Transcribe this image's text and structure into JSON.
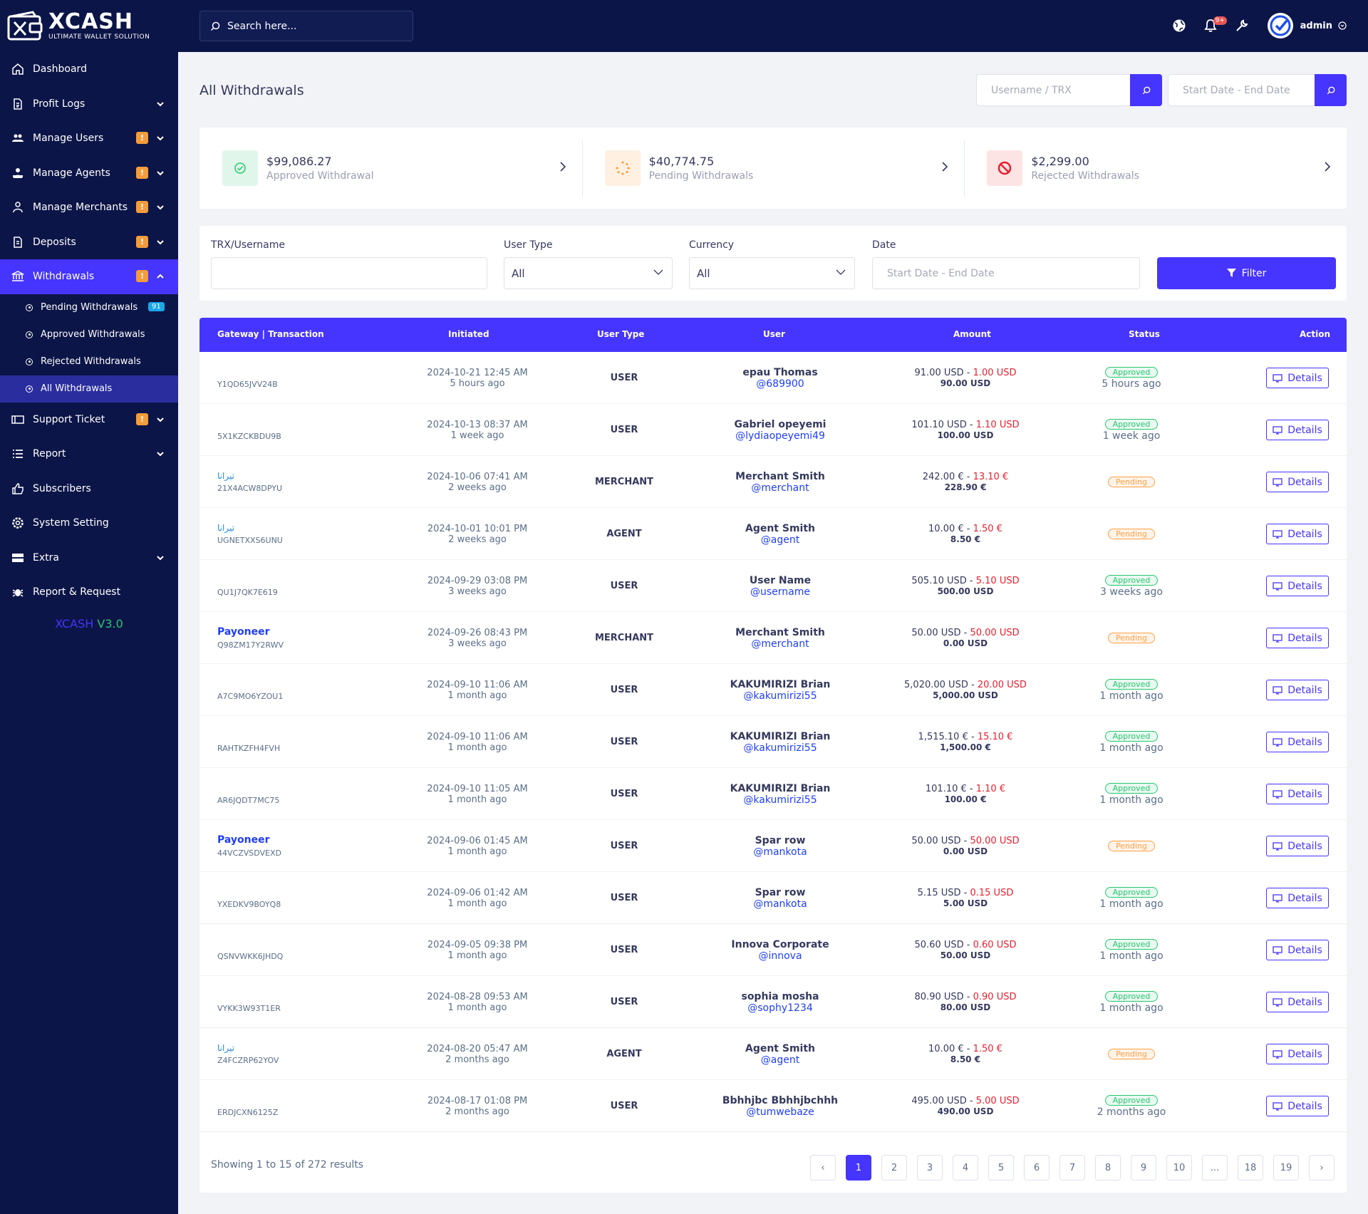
{
  "brand": {
    "name": "XCASH",
    "tagline": "ULTIMATE WALLET SOLUTION",
    "version_name": "XCASH",
    "version_num": "V3.0"
  },
  "colors": {
    "primary": "#4634ff",
    "sidebar": "#0c1547",
    "approved": "#28c76f",
    "pending": "#ff9f43",
    "rejected": "#ea5455"
  },
  "sidebar": {
    "items": [
      {
        "label": "Dashboard",
        "icon": "home-icon"
      },
      {
        "label": "Profit Logs",
        "icon": "file-icon",
        "chevron": true
      },
      {
        "label": "Manage Users",
        "icon": "users-icon",
        "badge": "!",
        "chevron": true
      },
      {
        "label": "Manage Agents",
        "icon": "agent-icon",
        "badge": "!",
        "chevron": true
      },
      {
        "label": "Manage Merchants",
        "icon": "merchant-icon",
        "badge": "!",
        "chevron": true
      },
      {
        "label": "Deposits",
        "icon": "deposit-icon",
        "badge": "!",
        "chevron": true
      },
      {
        "label": "Withdrawals",
        "icon": "bank-icon",
        "badge": "!",
        "chevron": true
      },
      {
        "label": "Support Ticket",
        "icon": "ticket-icon",
        "badge": "!",
        "chevron": true
      },
      {
        "label": "Report",
        "icon": "list-icon",
        "chevron": true
      },
      {
        "label": "Subscribers",
        "icon": "thumbs-up-icon"
      },
      {
        "label": "System Setting",
        "icon": "gear-icon"
      },
      {
        "label": "Extra",
        "icon": "server-icon",
        "chevron": true
      },
      {
        "label": "Report & Request",
        "icon": "bug-icon"
      }
    ],
    "withdraw_sub": [
      {
        "label": "Pending Withdrawals",
        "count": "91"
      },
      {
        "label": "Approved Withdrawals"
      },
      {
        "label": "Rejected Withdrawals"
      },
      {
        "label": "All Withdrawals"
      }
    ]
  },
  "topbar": {
    "search_placeholder": "Search here...",
    "notification_count": "9+",
    "user": "admin"
  },
  "page": {
    "title": "All Withdrawals",
    "search_placeholder": "Username / TRX",
    "date_placeholder": "Start Date - End Date"
  },
  "stats": [
    {
      "value": "$99,086.27",
      "label": "Approved Withdrawal"
    },
    {
      "value": "$40,774.75",
      "label": "Pending Withdrawals"
    },
    {
      "value": "$2,299.00",
      "label": "Rejected Withdrawals"
    }
  ],
  "filter": {
    "trx_label": "TRX/Username",
    "trx_value": "",
    "user_type_label": "User Type",
    "user_type_value": "All",
    "currency_label": "Currency",
    "currency_value": "All",
    "date_label": "Date",
    "date_placeholder": "Start Date - End Date",
    "button": "Filter"
  },
  "table": {
    "headers": [
      "Gateway | Transaction",
      "Initiated",
      "User Type",
      "User",
      "Amount",
      "Status",
      "Action"
    ],
    "rows": [
      {
        "gateway": "",
        "trx": "Y1QD65JVV24B",
        "date": "2024-10-21 12:45 AM",
        "ago": "5 hours ago",
        "type": "USER",
        "name": "epau Thomas",
        "handle": "@689900",
        "amount": "91.00 USD",
        "fee": "1.00 USD",
        "final": "90.00 USD",
        "status": "Approved",
        "status_ago": "5 hours ago",
        "action": "Details"
      },
      {
        "gateway": "",
        "trx": "5X1KZCKBDU9B",
        "date": "2024-10-13 08:37 AM",
        "ago": "1 week ago",
        "type": "USER",
        "name": "Gabriel opeyemi",
        "handle": "@lydiaopeyemi49",
        "amount": "101.10 USD",
        "fee": "1.10 USD",
        "final": "100.00 USD",
        "status": "Approved",
        "status_ago": "1 week ago",
        "action": "Details"
      },
      {
        "gateway": "تيرانا",
        "trx": "21X4ACW8DPYU",
        "date": "2024-10-06 07:41 AM",
        "ago": "2 weeks ago",
        "type": "MERCHANT",
        "name": "Merchant Smith",
        "handle": "@merchant",
        "amount": "242.00 €",
        "fee": "13.10 €",
        "final": "228.90 €",
        "status": "Pending",
        "status_ago": "",
        "action": "Details"
      },
      {
        "gateway": "تيرانا",
        "trx": "UGNETXXS6UNU",
        "date": "2024-10-01 10:01 PM",
        "ago": "2 weeks ago",
        "type": "AGENT",
        "name": "Agent Smith",
        "handle": "@agent",
        "amount": "10.00 €",
        "fee": "1.50 €",
        "final": "8.50 €",
        "status": "Pending",
        "status_ago": "",
        "action": "Details"
      },
      {
        "gateway": "",
        "trx": "QU1J7QK7E619",
        "date": "2024-09-29 03:08 PM",
        "ago": "3 weeks ago",
        "type": "USER",
        "name": "User Name",
        "handle": "@username",
        "amount": "505.10 USD",
        "fee": "5.10 USD",
        "final": "500.00 USD",
        "status": "Approved",
        "status_ago": "3 weeks ago",
        "action": "Details"
      },
      {
        "gateway": "Payoneer",
        "trx": "Q98ZM17Y2RWV",
        "date": "2024-09-26 08:43 PM",
        "ago": "3 weeks ago",
        "type": "MERCHANT",
        "name": "Merchant Smith",
        "handle": "@merchant",
        "amount": "50.00 USD",
        "fee": "50.00 USD",
        "final": "0.00 USD",
        "status": "Pending",
        "status_ago": "",
        "action": "Details"
      },
      {
        "gateway": "",
        "trx": "A7C9MO6YZOU1",
        "date": "2024-09-10 11:06 AM",
        "ago": "1 month ago",
        "type": "USER",
        "name": "KAKUMIRIZI Brian",
        "handle": "@kakumirizi55",
        "amount": "5,020.00 USD",
        "fee": "20.00 USD",
        "final": "5,000.00 USD",
        "status": "Approved",
        "status_ago": "1 month ago",
        "action": "Details"
      },
      {
        "gateway": "",
        "trx": "RAHTKZFH4FVH",
        "date": "2024-09-10 11:06 AM",
        "ago": "1 month ago",
        "type": "USER",
        "name": "KAKUMIRIZI Brian",
        "handle": "@kakumirizi55",
        "amount": "1,515.10 €",
        "fee": "15.10 €",
        "final": "1,500.00 €",
        "status": "Approved",
        "status_ago": "1 month ago",
        "action": "Details"
      },
      {
        "gateway": "",
        "trx": "AR6JQDT7MC75",
        "date": "2024-09-10 11:05 AM",
        "ago": "1 month ago",
        "type": "USER",
        "name": "KAKUMIRIZI Brian",
        "handle": "@kakumirizi55",
        "amount": "101.10 €",
        "fee": "1.10 €",
        "final": "100.00 €",
        "status": "Approved",
        "status_ago": "1 month ago",
        "action": "Details"
      },
      {
        "gateway": "Payoneer",
        "trx": "44VCZVSDVEXD",
        "date": "2024-09-06 01:45 AM",
        "ago": "1 month ago",
        "type": "USER",
        "name": "Spar row",
        "handle": "@mankota",
        "amount": "50.00 USD",
        "fee": "50.00 USD",
        "final": "0.00 USD",
        "status": "Pending",
        "status_ago": "",
        "action": "Details"
      },
      {
        "gateway": "",
        "trx": "YXEDKV9BOYQ8",
        "date": "2024-09-06 01:42 AM",
        "ago": "1 month ago",
        "type": "USER",
        "name": "Spar row",
        "handle": "@mankota",
        "amount": "5.15 USD",
        "fee": "0.15 USD",
        "final": "5.00 USD",
        "status": "Approved",
        "status_ago": "1 month ago",
        "action": "Details"
      },
      {
        "gateway": "",
        "trx": "QSNVWKK6JHDQ",
        "date": "2024-09-05 09:38 PM",
        "ago": "1 month ago",
        "type": "USER",
        "name": "Innova Corporate",
        "handle": "@innova",
        "amount": "50.60 USD",
        "fee": "0.60 USD",
        "final": "50.00 USD",
        "status": "Approved",
        "status_ago": "1 month ago",
        "action": "Details"
      },
      {
        "gateway": "",
        "trx": "VYKK3W93T1ER",
        "date": "2024-08-28 09:53 AM",
        "ago": "1 month ago",
        "type": "USER",
        "name": "sophia mosha",
        "handle": "@sophy1234",
        "amount": "80.90 USD",
        "fee": "0.90 USD",
        "final": "80.00 USD",
        "status": "Approved",
        "status_ago": "1 month ago",
        "action": "Details"
      },
      {
        "gateway": "تيرانا",
        "trx": "Z4FCZRP62YOV",
        "date": "2024-08-20 05:47 AM",
        "ago": "2 months ago",
        "type": "AGENT",
        "name": "Agent Smith",
        "handle": "@agent",
        "amount": "10.00 €",
        "fee": "1.50 €",
        "final": "8.50 €",
        "status": "Pending",
        "status_ago": "",
        "action": "Details"
      },
      {
        "gateway": "",
        "trx": "ERDJCXN6125Z",
        "date": "2024-08-17 01:08 PM",
        "ago": "2 months ago",
        "type": "USER",
        "name": "Bbhhjbc Bbhhjbchhh",
        "handle": "@tumwebaze",
        "amount": "495.00 USD",
        "fee": "5.00 USD",
        "final": "490.00 USD",
        "status": "Approved",
        "status_ago": "2 months ago",
        "action": "Details"
      }
    ]
  },
  "pagination": {
    "summary": "Showing 1 to 15 of 272 results",
    "prev": "‹",
    "next": "›",
    "pages": [
      "1",
      "2",
      "3",
      "4",
      "5",
      "6",
      "7",
      "8",
      "9",
      "10",
      "...",
      "18",
      "19"
    ],
    "current": "1"
  }
}
